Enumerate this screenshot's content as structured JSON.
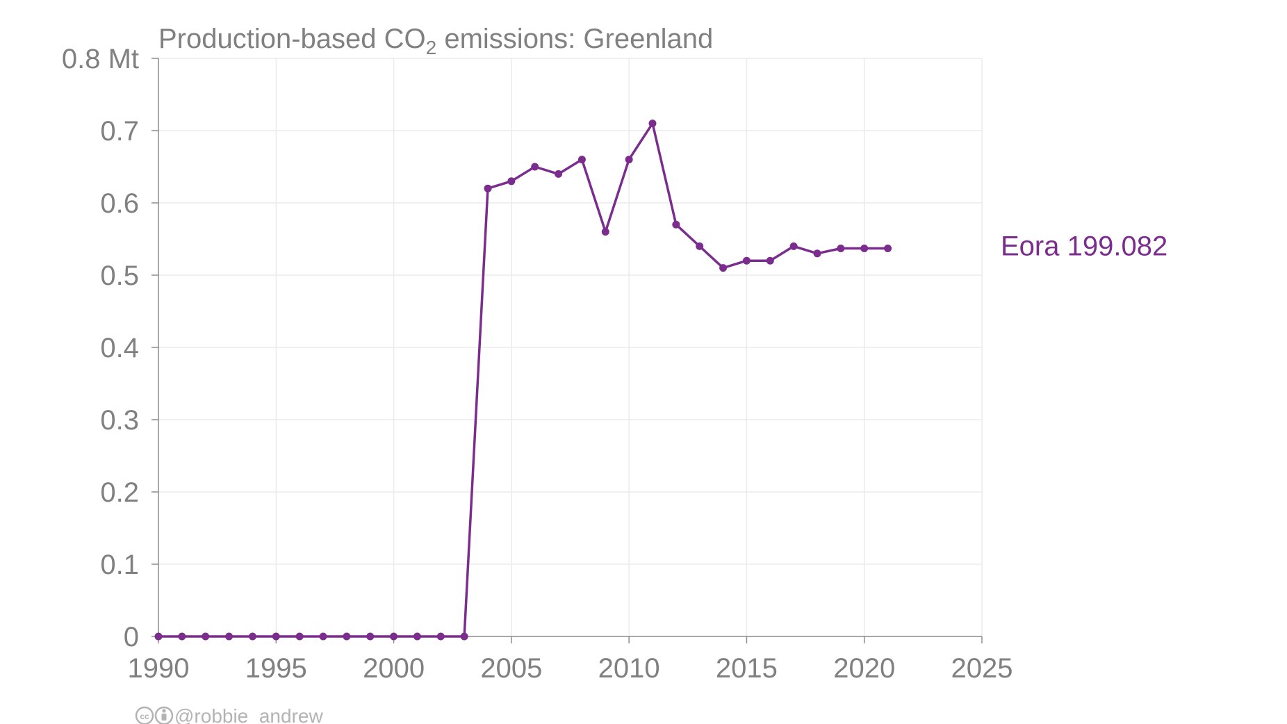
{
  "chart_data": {
    "type": "line",
    "title_prefix": "Production-based CO",
    "title_subscript": "2",
    "title_suffix": " emissions: Greenland",
    "y_unit": "Mt",
    "xlim": [
      1990,
      2025
    ],
    "ylim": [
      0,
      0.8
    ],
    "x_ticks": [
      1990,
      1995,
      2000,
      2005,
      2010,
      2015,
      2020,
      2025
    ],
    "y_ticks": [
      0,
      0.1,
      0.2,
      0.3,
      0.4,
      0.5,
      0.6,
      0.7,
      0.8
    ],
    "x_tick_labels": [
      "1990",
      "1995",
      "2000",
      "2005",
      "2010",
      "2015",
      "2020",
      "2025"
    ],
    "y_tick_labels": [
      "0",
      "0.1",
      "0.2",
      "0.3",
      "0.4",
      "0.5",
      "0.6",
      "0.7",
      "0.8 Mt"
    ],
    "grid": true,
    "series": [
      {
        "name": "Eora 199.082",
        "color": "#7b2d8e",
        "x": [
          1990,
          1991,
          1992,
          1993,
          1994,
          1995,
          1996,
          1997,
          1998,
          1999,
          2000,
          2001,
          2002,
          2003,
          2004,
          2005,
          2006,
          2007,
          2008,
          2009,
          2010,
          2011,
          2012,
          2013,
          2014,
          2015,
          2016,
          2017,
          2018,
          2019,
          2020,
          2021
        ],
        "y": [
          0,
          0,
          0,
          0,
          0,
          0,
          0,
          0,
          0,
          0,
          0,
          0,
          0,
          0,
          0.62,
          0.63,
          0.65,
          0.64,
          0.66,
          0.56,
          0.66,
          0.71,
          0.57,
          0.54,
          0.51,
          0.52,
          0.52,
          0.54,
          0.53,
          0.537,
          0.537,
          0.537
        ]
      }
    ]
  },
  "credit": {
    "icons": [
      "cc-icon",
      "by-icon"
    ],
    "handle": "@robbie_andrew"
  }
}
